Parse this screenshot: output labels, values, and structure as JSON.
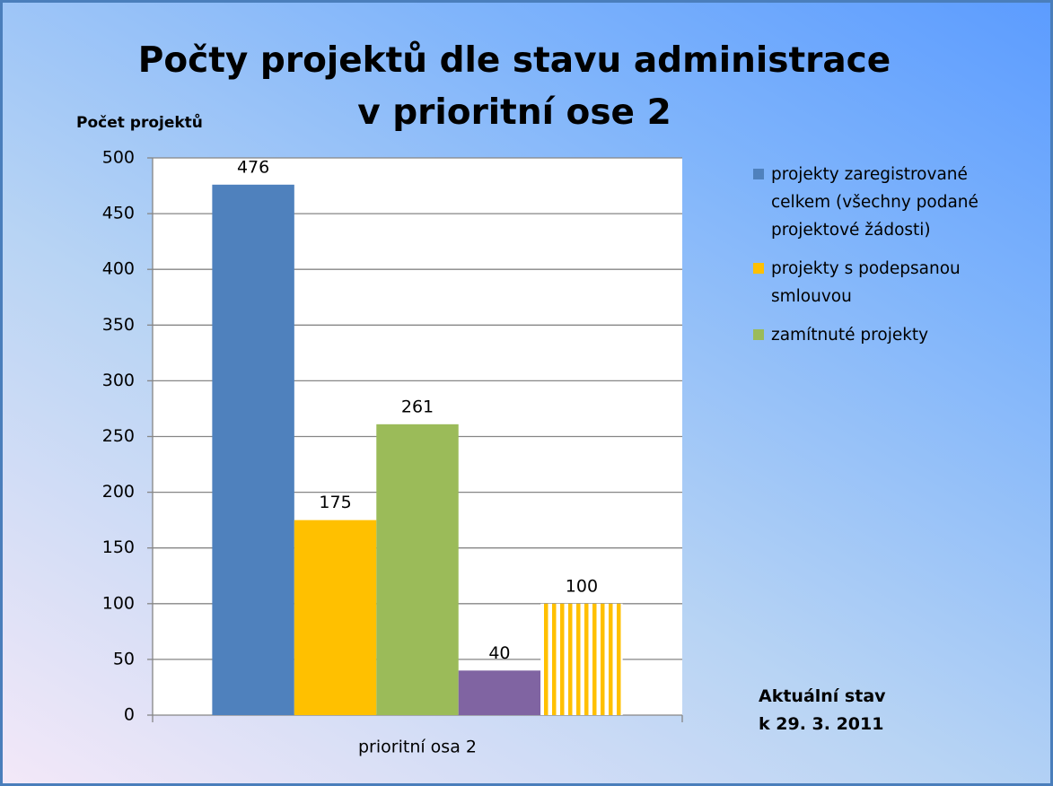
{
  "chart_data": {
    "type": "bar",
    "title": "Počty projektů dle stavu administrace v prioritní ose 2",
    "y_label": "Počet projektů",
    "categories": [
      "prioritní osa 2"
    ],
    "series": [
      {
        "name": "projekty zaregistrované celkem (všechny podané projektové žádosti)",
        "color": "#4f81bd",
        "values": [
          476
        ]
      },
      {
        "name": "projekty s podepsanou smlouvou",
        "color": "#ffc000",
        "values": [
          175
        ]
      },
      {
        "name": "zamítnuté projekty",
        "color": "#9bbb59",
        "values": [
          261
        ]
      },
      {
        "color": "#8064a2",
        "values": [
          40
        ]
      },
      {
        "color": "#ffc000",
        "pattern": "vertical-stripes",
        "values": [
          100
        ]
      }
    ],
    "annotation": "Aktuální stav k 29. 3. 2011",
    "ylim": [
      0,
      500
    ],
    "yticks": [
      0,
      50,
      100,
      150,
      200,
      250,
      300,
      350,
      400,
      450,
      500
    ],
    "grid": true,
    "legend": "right"
  }
}
